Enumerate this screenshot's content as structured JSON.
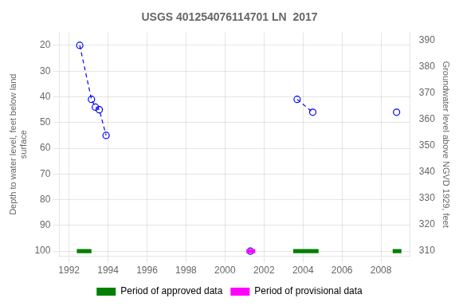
{
  "chart_data": {
    "type": "line",
    "title": "USGS 401254076114701 LN  2017",
    "ylabel": "Depth to water level, feet below land\nsurface",
    "y2label": "Groundwater level above NGVD 1929, feet",
    "xlim": [
      1991.5,
      2009.5
    ],
    "xticks": [
      1992,
      1994,
      1996,
      1998,
      2000,
      2002,
      2004,
      2006,
      2008
    ],
    "ylim": [
      102,
      15
    ],
    "yticks": [
      20,
      30,
      40,
      50,
      60,
      70,
      80,
      90,
      100
    ],
    "y2lim": [
      308,
      393
    ],
    "y2ticks": [
      390,
      380,
      370,
      360,
      350,
      340,
      330,
      320,
      310
    ],
    "grid": true,
    "legend": "bottom",
    "series": [
      {
        "x": [
          1992.55,
          1993.15,
          1993.35,
          1993.55,
          1993.9
        ],
        "values": [
          20,
          41,
          44,
          45,
          55
        ],
        "color": "#0000ff",
        "line_style": "dashed",
        "marker": "circle"
      },
      {
        "x": [
          2003.7,
          2004.5
        ],
        "values": [
          41,
          46
        ],
        "color": "#0000ff",
        "line_style": "dashed",
        "marker": "circle"
      },
      {
        "x": [
          2001.3,
          2008.8
        ],
        "values": [
          100,
          46
        ],
        "color": "#0000ff",
        "line_style": "none",
        "marker": "circle"
      }
    ],
    "periods": [
      {
        "name": "Period of approved data",
        "color": "#008000",
        "ranges": [
          [
            1992.4,
            1993.15
          ],
          [
            2003.5,
            2004.8
          ],
          [
            2008.6,
            2009.05
          ]
        ],
        "y": [
          99.2,
          100.8
        ]
      },
      {
        "name": "Period of provisional data",
        "color": "#ff00ff",
        "ranges": [
          [
            2001.1,
            2001.55
          ]
        ],
        "y": [
          99.2,
          100.8
        ]
      }
    ]
  }
}
